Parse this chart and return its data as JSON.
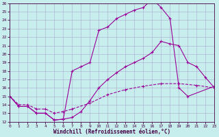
{
  "xlabel": "Windchill (Refroidissement éolien,°C)",
  "xlim": [
    0,
    23
  ],
  "ylim": [
    12,
    26
  ],
  "yticks": [
    12,
    13,
    14,
    15,
    16,
    17,
    18,
    19,
    20,
    21,
    22,
    23,
    24,
    25,
    26
  ],
  "xticks": [
    0,
    1,
    2,
    3,
    4,
    5,
    6,
    7,
    8,
    9,
    10,
    11,
    12,
    13,
    14,
    15,
    16,
    17,
    18,
    19,
    20,
    21,
    22,
    23
  ],
  "bg_color": "#c8eded",
  "line_color": "#990099",
  "grid_color": "#aaaacc",
  "line1_x": [
    0,
    1,
    2,
    3,
    4,
    5,
    6,
    7,
    8,
    9,
    10,
    11,
    12,
    13,
    14,
    15,
    16,
    17,
    18,
    19,
    20,
    21,
    22,
    23
  ],
  "line1_y": [
    15.0,
    13.8,
    13.8,
    13.0,
    13.0,
    12.2,
    12.3,
    12.5,
    13.2,
    14.5,
    16.0,
    17.0,
    17.8,
    18.5,
    19.0,
    19.5,
    20.2,
    21.5,
    21.2,
    21.0,
    19.0,
    18.5,
    17.2,
    16.0
  ],
  "line2_x": [
    0,
    1,
    2,
    3,
    4,
    5,
    6,
    7,
    8,
    9,
    10,
    11,
    12,
    13,
    14,
    15,
    16,
    17,
    18,
    19,
    20,
    23
  ],
  "line2_y": [
    15.0,
    13.8,
    13.8,
    13.0,
    13.0,
    12.2,
    12.3,
    18.0,
    18.5,
    19.0,
    22.8,
    23.2,
    24.2,
    24.7,
    25.2,
    25.5,
    26.5,
    25.5,
    24.2,
    16.0,
    15.0,
    16.2
  ],
  "line3_x": [
    0,
    1,
    2,
    3,
    4,
    5,
    6,
    7,
    9,
    11,
    13,
    15,
    17,
    19,
    21,
    23
  ],
  "line3_y": [
    15.0,
    14.0,
    14.0,
    13.5,
    13.5,
    13.0,
    13.2,
    13.5,
    14.2,
    15.2,
    15.8,
    16.2,
    16.5,
    16.5,
    16.3,
    16.0
  ]
}
